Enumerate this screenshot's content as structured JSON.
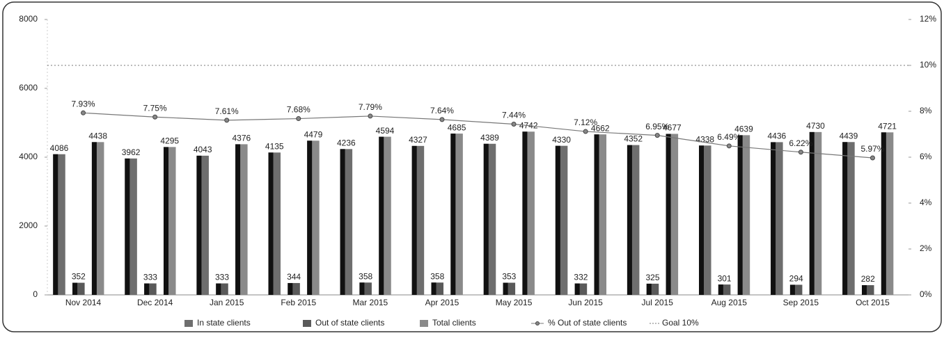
{
  "chart_data": {
    "type": "bar",
    "categories": [
      "Nov 2014",
      "Dec 2014",
      "Jan 2015",
      "Feb 2015",
      "Mar 2015",
      "Apr 2015",
      "May 2015",
      "Jun 2015",
      "Jul 2015",
      "Aug 2015",
      "Sep 2015",
      "Oct 2015"
    ],
    "series": [
      {
        "name": "In state clients",
        "color": "#6e6e6e",
        "values": [
          4086,
          3962,
          4043,
          4135,
          4236,
          4327,
          4389,
          4330,
          4352,
          4338,
          4436,
          4439
        ]
      },
      {
        "name": "Out of state clients",
        "color": "#5a5a5a",
        "values": [
          352,
          333,
          333,
          344,
          358,
          358,
          353,
          332,
          325,
          301,
          294,
          282
        ]
      },
      {
        "name": "Total clients",
        "color": "#8a8a8a",
        "values": [
          4438,
          4295,
          4376,
          4479,
          4594,
          4685,
          4742,
          4662,
          4677,
          4639,
          4730,
          4721
        ]
      },
      {
        "name": "% Out of state clients",
        "color": "#777777",
        "axis": "y2",
        "type": "line",
        "values": [
          7.93,
          7.75,
          7.61,
          7.68,
          7.79,
          7.64,
          7.44,
          7.12,
          6.95,
          6.49,
          6.22,
          5.97
        ],
        "value_labels": [
          "7.93%",
          "7.75%",
          "7.61%",
          "7.68%",
          "7.79%",
          "7.64%",
          "7.44%",
          "7.12%",
          "6.95%",
          "6.49%",
          "6.22%",
          "5.97%"
        ]
      }
    ],
    "goal": {
      "name": "Goal 10%",
      "value": 10,
      "axis": "y2",
      "color": "#777777"
    },
    "ylim": [
      0,
      8000
    ],
    "yticks": [
      0,
      2000,
      4000,
      6000,
      8000
    ],
    "y2lim": [
      0,
      12
    ],
    "y2ticks": [
      {
        "value": 0,
        "label": "0%"
      },
      {
        "value": 2,
        "label": "2%"
      },
      {
        "value": 4,
        "label": "4%"
      },
      {
        "value": 6,
        "label": "6%"
      },
      {
        "value": 8,
        "label": "8%"
      },
      {
        "value": 10,
        "label": "10%"
      },
      {
        "value": 12,
        "label": "12%"
      }
    ],
    "legend": "bottom"
  }
}
